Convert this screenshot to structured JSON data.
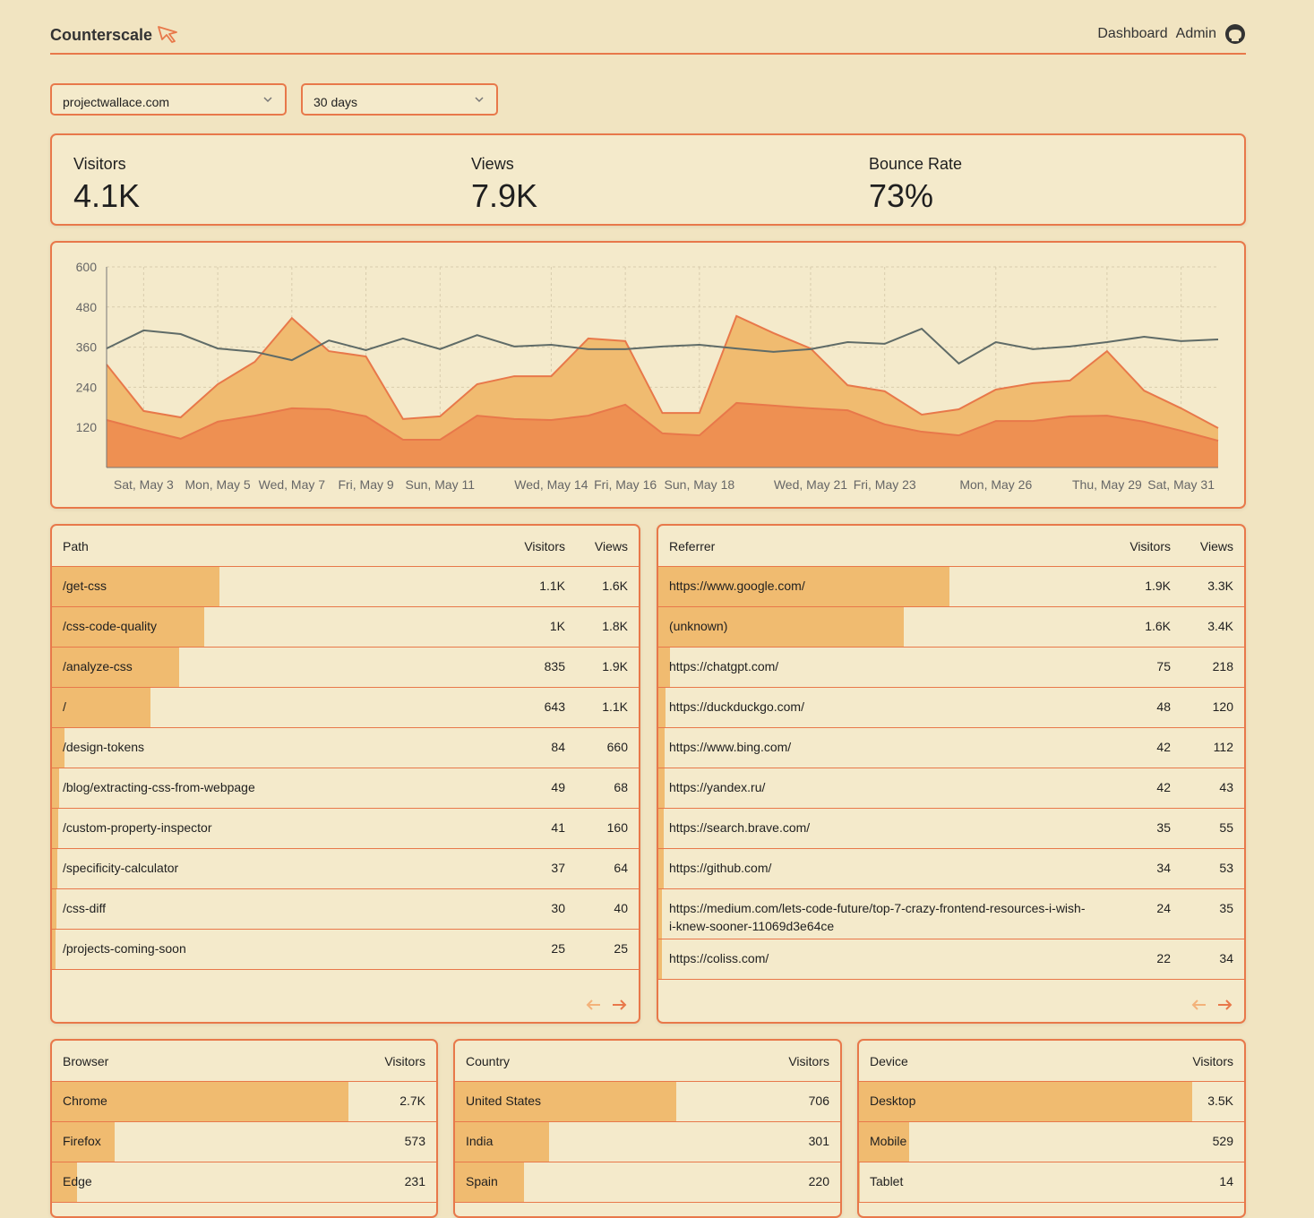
{
  "header": {
    "brand": "Counterscale",
    "nav": [
      "Dashboard",
      "Admin"
    ]
  },
  "filters": {
    "site": "projectwallace.com",
    "range": "30 days"
  },
  "stats": [
    {
      "label": "Visitors",
      "value": "4.1K"
    },
    {
      "label": "Views",
      "value": "7.9K"
    },
    {
      "label": "Bounce Rate",
      "value": "73%"
    }
  ],
  "chart_data": {
    "type": "area",
    "x": [
      null,
      "Sat, May 3",
      null,
      "Mon, May 5",
      null,
      "Wed, May 7",
      null,
      "Fri, May 9",
      null,
      "Sun, May 11",
      null,
      null,
      "Wed, May 14",
      null,
      "Fri, May 16",
      null,
      "Sun, May 18",
      null,
      null,
      "Wed, May 21",
      null,
      "Fri, May 23",
      null,
      null,
      "Mon, May 26",
      null,
      null,
      "Thu, May 29",
      null,
      "Sat, May 31",
      null
    ],
    "ylim": [
      0,
      600
    ],
    "yticks": [
      120,
      240,
      360,
      480,
      600
    ],
    "grid": true,
    "series": [
      {
        "color": "#f0bb70",
        "values": [
          308,
          169,
          150,
          249,
          316,
          447,
          348,
          332,
          145,
          153,
          249,
          273,
          273,
          386,
          378,
          163,
          163,
          453,
          402,
          356,
          246,
          228,
          158,
          174,
          233,
          252,
          260,
          348,
          230,
          177,
          118
        ]
      },
      {
        "color": "#ee9052",
        "values": [
          142,
          113,
          86,
          137,
          155,
          177,
          174,
          153,
          83,
          83,
          155,
          145,
          142,
          155,
          188,
          102,
          96,
          193,
          185,
          177,
          171,
          129,
          107,
          96,
          139,
          139,
          153,
          155,
          137,
          110,
          80
        ]
      },
      {
        "type": "line",
        "color": "#5f6b67",
        "values": [
          356,
          410,
          399,
          356,
          346,
          321,
          380,
          351,
          386,
          354,
          396,
          362,
          367,
          354,
          354,
          362,
          367,
          356,
          346,
          354,
          375,
          370,
          415,
          311,
          375,
          354,
          362,
          375,
          391,
          378,
          383
        ]
      }
    ]
  },
  "tables": {
    "paths": {
      "headers": [
        "Path",
        "Visitors",
        "Views"
      ],
      "rows": [
        "/get-css",
        "/css-code-quality",
        "/analyze-css",
        "/",
        "/design-tokens",
        "/blog/extracting-css-from-webpage",
        "/custom-property-inspector",
        "/specificity-calculator",
        "/css-diff",
        "/projects-coming-soon"
      ],
      "visitors": [
        1100,
        1000,
        835,
        643,
        84,
        49,
        41,
        37,
        30,
        25
      ],
      "value_labels": [
        "1.1K",
        "1K",
        "835",
        "643",
        "84",
        "49",
        "41",
        "37",
        "30",
        "25"
      ],
      "views": [
        "1.6K",
        "1.8K",
        "1.9K",
        "1.1K",
        "660",
        "68",
        "160",
        "64",
        "40",
        "25"
      ]
    },
    "referrers": {
      "headers": [
        "Referrer",
        "Visitors",
        "Views"
      ],
      "rows": [
        "https://www.google.com/",
        "(unknown)",
        "https://chatgpt.com/",
        "https://duckduckgo.com/",
        "https://www.bing.com/",
        "https://yandex.ru/",
        "https://search.brave.com/",
        "https://github.com/",
        "https://medium.com/lets-code-future/top-7-crazy-frontend-resources-i-wish-i-knew-sooner-11069d3e64ce",
        "https://coliss.com/"
      ],
      "visitors": [
        1900,
        1600,
        75,
        48,
        42,
        42,
        35,
        34,
        24,
        22
      ],
      "value_labels": [
        "1.9K",
        "1.6K",
        "75",
        "48",
        "42",
        "42",
        "35",
        "34",
        "24",
        "22"
      ],
      "views": [
        "3.3K",
        "3.4K",
        "218",
        "120",
        "112",
        "43",
        "55",
        "53",
        "35",
        "34"
      ]
    },
    "browsers": {
      "headers": [
        "Browser",
        "Visitors"
      ],
      "rows": [
        "Chrome",
        "Firefox",
        "Edge"
      ],
      "visitors": [
        2700,
        573,
        231
      ],
      "value_labels": [
        "2.7K",
        "573",
        "231"
      ]
    },
    "countries": {
      "headers": [
        "Country",
        "Visitors"
      ],
      "rows": [
        "United States",
        "India",
        "Spain"
      ],
      "visitors": [
        706,
        301,
        220
      ],
      "value_labels": [
        "706",
        "301",
        "220"
      ]
    },
    "devices": {
      "headers": [
        "Device",
        "Visitors"
      ],
      "rows": [
        "Desktop",
        "Mobile",
        "Tablet"
      ],
      "visitors": [
        3500,
        529,
        14
      ],
      "value_labels": [
        "3.5K",
        "529",
        "14"
      ]
    }
  }
}
